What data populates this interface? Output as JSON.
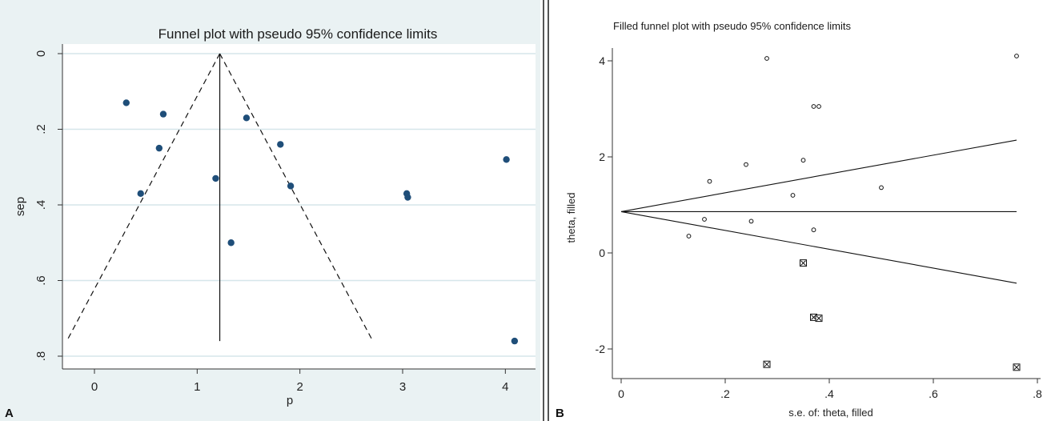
{
  "panel_labels": [
    "A",
    "B"
  ],
  "chart_data": [
    {
      "type": "scatter",
      "title": "Funnel plot with pseudo 95% confidence limits",
      "xlabel": "p",
      "ylabel": "sep",
      "xlim": [
        -0.3,
        4.15
      ],
      "ylim": [
        0,
        0.8
      ],
      "y_reversed": true,
      "x_ticks": [
        "0",
        "1",
        "2",
        "3",
        "4"
      ],
      "y_ticks": [
        "0",
        ".2",
        ".4",
        ".6",
        ".8"
      ],
      "grid": true,
      "point_color": "#1f4e79",
      "points": [
        {
          "x": 0.31,
          "y": 0.13
        },
        {
          "x": 0.67,
          "y": 0.16
        },
        {
          "x": 0.63,
          "y": 0.25
        },
        {
          "x": 0.45,
          "y": 0.37
        },
        {
          "x": 1.48,
          "y": 0.17
        },
        {
          "x": 1.81,
          "y": 0.24
        },
        {
          "x": 1.18,
          "y": 0.33
        },
        {
          "x": 1.91,
          "y": 0.35
        },
        {
          "x": 1.33,
          "y": 0.5
        },
        {
          "x": 3.04,
          "y": 0.37
        },
        {
          "x": 3.05,
          "y": 0.38
        },
        {
          "x": 4.01,
          "y": 0.28
        },
        {
          "x": 4.09,
          "y": 0.76
        }
      ],
      "pooled": 1.22,
      "limit_max_se": 0.76
    },
    {
      "type": "scatter",
      "title": "Filled funnel plot with pseudo 95% confidence limits",
      "xlabel": "s.e. of: theta, filled",
      "ylabel": "theta, filled",
      "xlim": [
        -0.01,
        0.8
      ],
      "ylim": [
        -2.65,
        4.35
      ],
      "x_ticks": [
        "0",
        ".2",
        ".4",
        ".6",
        ".8"
      ],
      "y_ticks": [
        "-2",
        "0",
        "2",
        "4"
      ],
      "grid": false,
      "observed_points": [
        {
          "x": 0.28,
          "y": 4.05
        },
        {
          "x": 0.76,
          "y": 4.1
        },
        {
          "x": 0.37,
          "y": 3.05
        },
        {
          "x": 0.38,
          "y": 3.05
        },
        {
          "x": 0.24,
          "y": 1.84
        },
        {
          "x": 0.35,
          "y": 1.93
        },
        {
          "x": 0.17,
          "y": 1.49
        },
        {
          "x": 0.5,
          "y": 1.36
        },
        {
          "x": 0.33,
          "y": 1.2
        },
        {
          "x": 0.16,
          "y": 0.7
        },
        {
          "x": 0.25,
          "y": 0.66
        },
        {
          "x": 0.37,
          "y": 0.48
        },
        {
          "x": 0.13,
          "y": 0.35
        }
      ],
      "filled_points": [
        {
          "x": 0.35,
          "y": -0.21
        },
        {
          "x": 0.37,
          "y": -1.34
        },
        {
          "x": 0.38,
          "y": -1.36
        },
        {
          "x": 0.28,
          "y": -2.32
        },
        {
          "x": 0.76,
          "y": -2.38
        }
      ],
      "pooled": 0.86,
      "limit_max_se": 0.76
    }
  ]
}
